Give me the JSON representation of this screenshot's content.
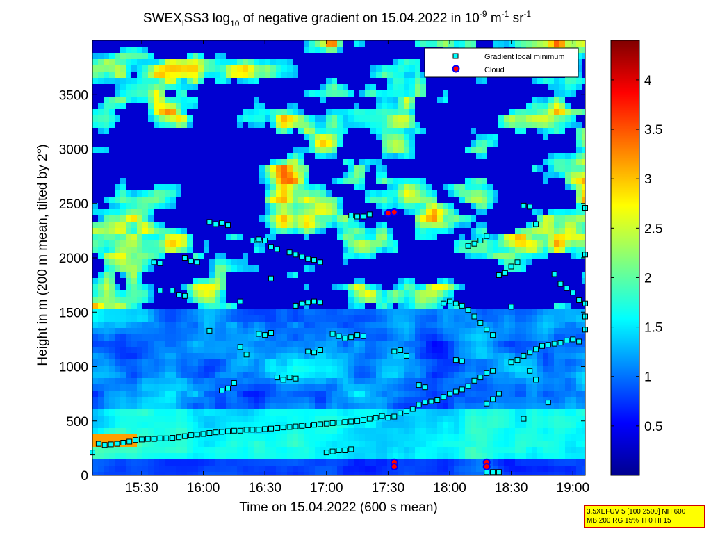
{
  "chart_data": {
    "type": "heatmap",
    "title": {
      "prefix": "SWEX",
      "sub_l": "l",
      "mid": "SS3 log",
      "sub_10": "10",
      "text": " of negative gradient on 15.04.2022 in 10",
      "sup_1": "-9",
      "unit_m": " m",
      "sup_2": "-1",
      "unit_sr": " sr",
      "sup_3": "-1"
    },
    "xlabel": "Time on 15.04.2022 (600 s mean)",
    "ylabel": "Height in m (200 m mean, tilted by 2°)",
    "x_range_hours": [
      15.1,
      19.1
    ],
    "ylim": [
      0,
      4000
    ],
    "x_ticks": [
      {
        "label": "15:30",
        "hour": 15.5
      },
      {
        "label": "16:00",
        "hour": 16.0
      },
      {
        "label": "16:30",
        "hour": 16.5
      },
      {
        "label": "17:00",
        "hour": 17.0
      },
      {
        "label": "17:30",
        "hour": 17.5
      },
      {
        "label": "18:00",
        "hour": 18.0
      },
      {
        "label": "18:30",
        "hour": 18.5
      },
      {
        "label": "19:00",
        "hour": 19.0
      }
    ],
    "y_ticks": [
      0,
      500,
      1000,
      1500,
      2000,
      2500,
      3000,
      3500
    ],
    "colorbar": {
      "range": [
        0,
        4.4
      ],
      "ticks": [
        "0.5",
        "1",
        "1.5",
        "2",
        "2.5",
        "3",
        "3.5",
        "4"
      ],
      "colormap": "jet"
    },
    "legend": {
      "placement": "top-right",
      "entries": [
        {
          "label": "Gradient local minimum",
          "marker": "square",
          "color": "#00ffff"
        },
        {
          "label": "Cloud",
          "marker": "circle",
          "color": "#ff0000",
          "edge": "#0000ff"
        }
      ]
    },
    "series": [
      {
        "name": "Gradient local minimum",
        "points": [
          [
            15.1,
            210
          ],
          [
            15.15,
            290
          ],
          [
            15.2,
            280
          ],
          [
            15.25,
            285
          ],
          [
            15.3,
            290
          ],
          [
            15.35,
            300
          ],
          [
            15.4,
            310
          ],
          [
            15.45,
            325
          ],
          [
            15.5,
            330
          ],
          [
            15.55,
            335
          ],
          [
            15.6,
            335
          ],
          [
            15.65,
            340
          ],
          [
            15.7,
            340
          ],
          [
            15.75,
            345
          ],
          [
            15.8,
            350
          ],
          [
            15.85,
            360
          ],
          [
            15.9,
            370
          ],
          [
            15.95,
            375
          ],
          [
            16.0,
            380
          ],
          [
            16.05,
            390
          ],
          [
            16.1,
            395
          ],
          [
            16.15,
            400
          ],
          [
            16.2,
            405
          ],
          [
            16.25,
            410
          ],
          [
            16.3,
            410
          ],
          [
            16.35,
            420
          ],
          [
            16.4,
            420
          ],
          [
            16.45,
            420
          ],
          [
            16.5,
            425
          ],
          [
            16.55,
            430
          ],
          [
            16.6,
            435
          ],
          [
            16.65,
            440
          ],
          [
            16.7,
            445
          ],
          [
            16.75,
            450
          ],
          [
            16.8,
            455
          ],
          [
            16.85,
            460
          ],
          [
            16.9,
            465
          ],
          [
            16.95,
            470
          ],
          [
            17.0,
            475
          ],
          [
            17.05,
            480
          ],
          [
            17.1,
            485
          ],
          [
            17.15,
            490
          ],
          [
            17.2,
            495
          ],
          [
            17.25,
            500
          ],
          [
            17.3,
            510
          ],
          [
            17.35,
            520
          ],
          [
            17.4,
            530
          ],
          [
            17.45,
            545
          ],
          [
            17.5,
            530
          ],
          [
            17.55,
            540
          ],
          [
            17.6,
            570
          ],
          [
            17.65,
            590
          ],
          [
            17.7,
            610
          ],
          [
            17.75,
            650
          ],
          [
            17.8,
            670
          ],
          [
            17.85,
            680
          ],
          [
            17.9,
            690
          ],
          [
            17.95,
            720
          ],
          [
            18.0,
            750
          ],
          [
            18.05,
            770
          ],
          [
            18.1,
            790
          ],
          [
            18.15,
            820
          ],
          [
            18.2,
            870
          ],
          [
            18.25,
            900
          ],
          [
            18.3,
            940
          ],
          [
            18.35,
            960
          ],
          [
            18.5,
            1040
          ],
          [
            18.55,
            1060
          ],
          [
            18.6,
            1100
          ],
          [
            18.65,
            1130
          ],
          [
            18.7,
            1160
          ],
          [
            18.75,
            1190
          ],
          [
            18.8,
            1200
          ],
          [
            18.85,
            1210
          ],
          [
            18.9,
            1220
          ],
          [
            18.95,
            1240
          ],
          [
            19.0,
            1250
          ],
          [
            16.05,
            2330
          ],
          [
            16.1,
            2310
          ],
          [
            16.15,
            2320
          ],
          [
            16.2,
            2300
          ],
          [
            15.85,
            2000
          ],
          [
            15.9,
            1970
          ],
          [
            15.95,
            1960
          ],
          [
            15.6,
            1960
          ],
          [
            15.65,
            1950
          ],
          [
            15.75,
            1700
          ],
          [
            15.8,
            1660
          ],
          [
            15.85,
            1650
          ],
          [
            16.4,
            2160
          ],
          [
            16.45,
            2170
          ],
          [
            16.5,
            2160
          ],
          [
            16.55,
            2100
          ],
          [
            16.6,
            2080
          ],
          [
            16.7,
            2050
          ],
          [
            16.75,
            2030
          ],
          [
            16.8,
            2010
          ],
          [
            16.85,
            1990
          ],
          [
            16.9,
            1980
          ],
          [
            16.95,
            1960
          ],
          [
            16.75,
            1560
          ],
          [
            16.8,
            1580
          ],
          [
            16.85,
            1590
          ],
          [
            16.9,
            1600
          ],
          [
            16.95,
            1590
          ],
          [
            17.05,
            1300
          ],
          [
            17.1,
            1280
          ],
          [
            17.15,
            1260
          ],
          [
            17.2,
            1270
          ],
          [
            17.25,
            1290
          ],
          [
            17.3,
            1280
          ],
          [
            16.45,
            1300
          ],
          [
            16.5,
            1290
          ],
          [
            16.55,
            1310
          ],
          [
            16.6,
            900
          ],
          [
            16.65,
            880
          ],
          [
            16.7,
            900
          ],
          [
            16.75,
            890
          ],
          [
            16.85,
            1140
          ],
          [
            16.9,
            1130
          ],
          [
            16.95,
            1150
          ],
          [
            17.2,
            2390
          ],
          [
            17.25,
            2380
          ],
          [
            17.3,
            2380
          ],
          [
            17.35,
            2400
          ],
          [
            17.55,
            1140
          ],
          [
            17.6,
            1150
          ],
          [
            17.65,
            1100
          ],
          [
            17.95,
            1580
          ],
          [
            18.0,
            1600
          ],
          [
            18.05,
            1580
          ],
          [
            18.1,
            1560
          ],
          [
            18.15,
            1520
          ],
          [
            18.2,
            1460
          ],
          [
            18.25,
            1400
          ],
          [
            18.3,
            1340
          ],
          [
            18.35,
            1290
          ],
          [
            18.15,
            2110
          ],
          [
            18.2,
            2130
          ],
          [
            18.25,
            2160
          ],
          [
            18.3,
            2200
          ],
          [
            18.4,
            1840
          ],
          [
            18.45,
            1860
          ],
          [
            18.5,
            1920
          ],
          [
            18.55,
            1960
          ],
          [
            18.6,
            2480
          ],
          [
            18.65,
            2470
          ],
          [
            18.7,
            2310
          ],
          [
            18.85,
            1850
          ],
          [
            18.9,
            1760
          ],
          [
            18.95,
            1720
          ],
          [
            19.0,
            1680
          ],
          [
            19.05,
            1610
          ],
          [
            19.1,
            1580
          ],
          [
            19.1,
            1460
          ],
          [
            19.1,
            1340
          ],
          [
            19.05,
            1230
          ],
          [
            19.1,
            2030
          ],
          [
            19.1,
            2460
          ],
          [
            17.75,
            830
          ],
          [
            17.8,
            810
          ],
          [
            18.05,
            1060
          ],
          [
            18.1,
            1050
          ],
          [
            18.3,
            660
          ],
          [
            18.35,
            700
          ],
          [
            18.4,
            750
          ],
          [
            18.5,
            1550
          ],
          [
            18.65,
            960
          ],
          [
            18.7,
            880
          ],
          [
            18.8,
            670
          ],
          [
            18.6,
            520
          ],
          [
            16.15,
            780
          ],
          [
            16.2,
            800
          ],
          [
            16.25,
            850
          ],
          [
            16.3,
            1600
          ],
          [
            16.55,
            1810
          ],
          [
            16.05,
            1330
          ],
          [
            15.65,
            1700
          ],
          [
            17.0,
            210
          ],
          [
            17.05,
            220
          ],
          [
            17.1,
            230
          ],
          [
            17.15,
            230
          ],
          [
            17.2,
            240
          ],
          [
            18.3,
            30
          ],
          [
            18.35,
            30
          ],
          [
            18.4,
            30
          ],
          [
            16.3,
            1180
          ],
          [
            16.35,
            1110
          ]
        ]
      },
      {
        "name": "Cloud",
        "points": [
          [
            17.55,
            120
          ],
          [
            17.55,
            80
          ],
          [
            18.3,
            120
          ],
          [
            18.3,
            80
          ],
          [
            17.5,
            2410
          ],
          [
            17.55,
            2420
          ]
        ]
      }
    ]
  },
  "info_box": {
    "line1": "3.5XEFUV 5 [100 2500] NH 600",
    "line2": "MB 200 RG 15% TI 0 HI 15"
  },
  "colors": {
    "axes": "#000000",
    "background": "#ffffff",
    "info_box_bg": "#ffff00",
    "info_box_border": "#d00000"
  }
}
